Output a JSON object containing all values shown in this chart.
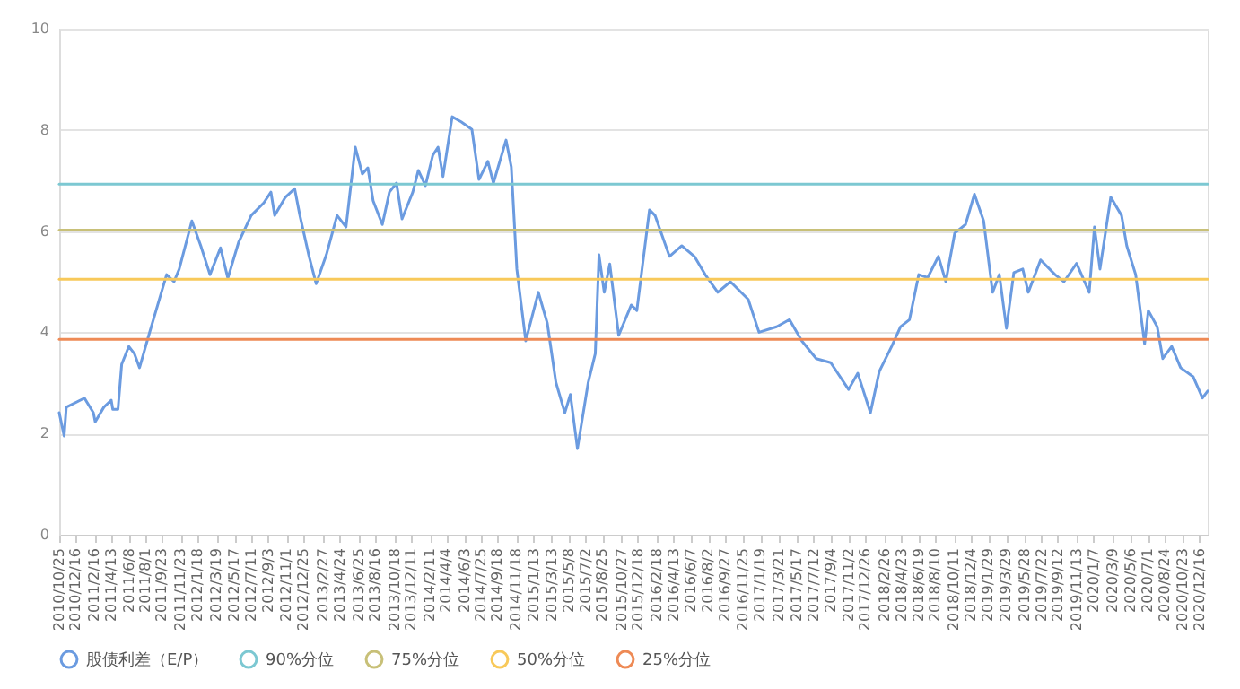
{
  "chart_data": {
    "type": "line",
    "xlim": [
      "2010-10-25",
      "2021-01-12"
    ],
    "xticks": [
      {
        "value": "2010-10-25",
        "label": "2010/10/25"
      },
      {
        "value": "2010-12-16",
        "label": "2010/12/16"
      },
      {
        "value": "2011-02-16",
        "label": "2011/2/16"
      },
      {
        "value": "2011-04-13",
        "label": "2011/4/13"
      },
      {
        "value": "2011-06-08",
        "label": "2011/6/8"
      },
      {
        "value": "2011-08-01",
        "label": "2011/8/1"
      },
      {
        "value": "2011-09-23",
        "label": "2011/9/23"
      },
      {
        "value": "2011-11-23",
        "label": "2011/11/23"
      },
      {
        "value": "2012-01-18",
        "label": "2012/1/18"
      },
      {
        "value": "2012-03-19",
        "label": "2012/3/19"
      },
      {
        "value": "2012-05-17",
        "label": "2012/5/17"
      },
      {
        "value": "2012-07-11",
        "label": "2012/7/11"
      },
      {
        "value": "2012-09-03",
        "label": "2012/9/3"
      },
      {
        "value": "2012-11-01",
        "label": "2012/11/1"
      },
      {
        "value": "2012-12-25",
        "label": "2012/12/25"
      },
      {
        "value": "2013-02-27",
        "label": "2013/2/27"
      },
      {
        "value": "2013-04-24",
        "label": "2013/4/24"
      },
      {
        "value": "2013-06-25",
        "label": "2013/6/25"
      },
      {
        "value": "2013-08-16",
        "label": "2013/8/16"
      },
      {
        "value": "2013-10-18",
        "label": "2013/10/18"
      },
      {
        "value": "2013-12-11",
        "label": "2013/12/11"
      },
      {
        "value": "2014-02-11",
        "label": "2014/2/11"
      },
      {
        "value": "2014-04-04",
        "label": "2014/4/4"
      },
      {
        "value": "2014-06-03",
        "label": "2014/6/3"
      },
      {
        "value": "2014-07-25",
        "label": "2014/7/25"
      },
      {
        "value": "2014-09-18",
        "label": "2014/9/18"
      },
      {
        "value": "2014-11-18",
        "label": "2014/11/18"
      },
      {
        "value": "2015-01-13",
        "label": "2015/1/13"
      },
      {
        "value": "2015-03-13",
        "label": "2015/3/13"
      },
      {
        "value": "2015-05-08",
        "label": "2015/5/8"
      },
      {
        "value": "2015-07-02",
        "label": "2015/7/2"
      },
      {
        "value": "2015-08-25",
        "label": "2015/8/25"
      },
      {
        "value": "2015-10-27",
        "label": "2015/10/27"
      },
      {
        "value": "2015-12-18",
        "label": "2015/12/18"
      },
      {
        "value": "2016-02-18",
        "label": "2016/2/18"
      },
      {
        "value": "2016-04-13",
        "label": "2016/4/13"
      },
      {
        "value": "2016-06-07",
        "label": "2016/6/7"
      },
      {
        "value": "2016-08-02",
        "label": "2016/8/2"
      },
      {
        "value": "2016-09-27",
        "label": "2016/9/27"
      },
      {
        "value": "2016-11-25",
        "label": "2016/11/25"
      },
      {
        "value": "2017-01-19",
        "label": "2017/1/19"
      },
      {
        "value": "2017-03-21",
        "label": "2017/3/21"
      },
      {
        "value": "2017-05-17",
        "label": "2017/5/17"
      },
      {
        "value": "2017-07-12",
        "label": "2017/7/12"
      },
      {
        "value": "2017-09-04",
        "label": "2017/9/4"
      },
      {
        "value": "2017-11-02",
        "label": "2017/11/2"
      },
      {
        "value": "2017-12-26",
        "label": "2017/12/26"
      },
      {
        "value": "2018-02-26",
        "label": "2018/2/26"
      },
      {
        "value": "2018-04-23",
        "label": "2018/4/23"
      },
      {
        "value": "2018-06-19",
        "label": "2018/6/19"
      },
      {
        "value": "2018-08-10",
        "label": "2018/8/10"
      },
      {
        "value": "2018-10-11",
        "label": "2018/10/11"
      },
      {
        "value": "2018-12-04",
        "label": "2018/12/4"
      },
      {
        "value": "2019-01-29",
        "label": "2019/1/29"
      },
      {
        "value": "2019-03-29",
        "label": "2019/3/29"
      },
      {
        "value": "2019-05-28",
        "label": "2019/5/28"
      },
      {
        "value": "2019-07-22",
        "label": "2019/7/22"
      },
      {
        "value": "2019-09-12",
        "label": "2019/9/12"
      },
      {
        "value": "2019-11-13",
        "label": "2019/11/13"
      },
      {
        "value": "2020-01-07",
        "label": "2020/1/7"
      },
      {
        "value": "2020-03-09",
        "label": "2020/3/9"
      },
      {
        "value": "2020-05-06",
        "label": "2020/5/6"
      },
      {
        "value": "2020-07-01",
        "label": "2020/7/1"
      },
      {
        "value": "2020-08-24",
        "label": "2020/8/24"
      },
      {
        "value": "2020-10-23",
        "label": "2020/10/23"
      },
      {
        "value": "2020-12-16",
        "label": "2020/12/16"
      }
    ],
    "ylim": [
      0,
      10
    ],
    "yticks": [
      0,
      2,
      4,
      6,
      8,
      10
    ],
    "grid": "y",
    "legend": "bottom",
    "x": [
      "2010-10-25",
      "2010-11-10",
      "2010-11-17",
      "2011-01-15",
      "2011-02-13",
      "2011-02-19",
      "2011-03-19",
      "2011-04-12",
      "2011-04-17",
      "2011-05-04",
      "2011-05-16",
      "2011-06-08",
      "2011-06-26",
      "2011-07-13",
      "2011-08-12",
      "2011-09-10",
      "2011-10-09",
      "2011-11-02",
      "2011-11-19",
      "2011-12-30",
      "2012-01-28",
      "2012-02-27",
      "2012-04-01",
      "2012-04-25",
      "2012-05-30",
      "2012-07-10",
      "2012-08-20",
      "2012-09-12",
      "2012-09-24",
      "2012-10-29",
      "2012-11-28",
      "2012-12-15",
      "2013-01-14",
      "2013-02-06",
      "2013-03-11",
      "2013-04-15",
      "2013-05-14",
      "2013-06-13",
      "2013-07-06",
      "2013-07-24",
      "2013-08-10",
      "2013-09-09",
      "2013-10-02",
      "2013-10-25",
      "2013-11-12",
      "2013-12-17",
      "2014-01-04",
      "2014-01-27",
      "2014-02-20",
      "2014-03-09",
      "2014-03-25",
      "2014-04-24",
      "2014-05-23",
      "2014-06-27",
      "2014-07-20",
      "2014-08-18",
      "2014-09-05",
      "2014-10-16",
      "2014-11-02",
      "2014-11-20",
      "2014-12-19",
      "2015-01-29",
      "2015-02-27",
      "2015-03-27",
      "2015-04-25",
      "2015-05-13",
      "2015-06-05",
      "2015-07-10",
      "2015-08-02",
      "2015-08-14",
      "2015-08-31",
      "2015-09-18",
      "2015-10-17",
      "2015-11-27",
      "2015-12-15",
      "2016-01-25",
      "2016-02-12",
      "2016-03-30",
      "2016-05-09",
      "2016-06-19",
      "2016-07-24",
      "2016-09-03",
      "2016-10-14",
      "2016-12-11",
      "2017-01-15",
      "2017-03-13",
      "2017-04-24",
      "2017-06-03",
      "2017-07-20",
      "2017-09-05",
      "2017-11-02",
      "2017-12-02",
      "2018-01-12",
      "2018-02-10",
      "2018-03-22",
      "2018-04-20",
      "2018-05-19",
      "2018-06-18",
      "2018-07-17",
      "2018-08-21",
      "2018-09-14",
      "2018-10-13",
      "2018-11-17",
      "2018-12-16",
      "2019-01-15",
      "2019-02-13",
      "2019-03-07",
      "2019-03-30",
      "2019-04-23",
      "2019-05-22",
      "2019-06-09",
      "2019-07-19",
      "2019-09-04",
      "2019-10-03",
      "2019-11-13",
      "2019-12-24",
      "2020-01-10",
      "2020-01-28",
      "2020-03-03",
      "2020-04-07",
      "2020-04-24",
      "2020-05-23",
      "2020-06-21",
      "2020-07-03",
      "2020-08-01",
      "2020-08-19",
      "2020-09-17",
      "2020-10-16",
      "2020-11-26",
      "2020-12-26",
      "2021-01-12"
    ],
    "series": [
      {
        "name": "股债利差（E/P）",
        "color": "#6b9be0",
        "values": [
          2.41,
          1.95,
          2.52,
          2.7,
          2.41,
          2.23,
          2.52,
          2.66,
          2.48,
          2.48,
          3.37,
          3.72,
          3.58,
          3.3,
          3.94,
          4.54,
          5.14,
          5.0,
          5.25,
          6.2,
          5.71,
          5.14,
          5.67,
          5.07,
          5.78,
          6.31,
          6.56,
          6.77,
          6.31,
          6.67,
          6.84,
          6.31,
          5.5,
          4.96,
          5.53,
          6.31,
          6.08,
          7.66,
          7.13,
          7.25,
          6.6,
          6.13,
          6.77,
          6.95,
          6.24,
          6.77,
          7.2,
          6.9,
          7.5,
          7.66,
          7.08,
          8.26,
          8.16,
          8.01,
          7.02,
          7.38,
          6.95,
          7.8,
          7.27,
          5.25,
          3.83,
          4.79,
          4.18,
          3.01,
          2.41,
          2.77,
          1.7,
          3.01,
          3.58,
          5.53,
          4.79,
          5.35,
          3.94,
          4.54,
          4.43,
          6.42,
          6.31,
          5.5,
          5.71,
          5.5,
          5.14,
          4.79,
          5.0,
          4.65,
          4.0,
          4.11,
          4.25,
          3.83,
          3.48,
          3.4,
          2.87,
          3.19,
          2.41,
          3.23,
          3.72,
          4.11,
          4.25,
          5.14,
          5.08,
          5.5,
          5.0,
          5.96,
          6.13,
          6.73,
          6.2,
          4.79,
          5.14,
          4.08,
          5.18,
          5.25,
          4.79,
          5.43,
          5.14,
          5.0,
          5.36,
          4.79,
          6.08,
          5.25,
          6.67,
          6.31,
          5.71,
          5.14,
          3.77,
          4.43,
          4.11,
          3.48,
          3.72,
          3.3,
          3.12,
          2.7,
          2.84
        ]
      },
      {
        "name": "90%分位",
        "color": "#7cc8d2",
        "x": [
          "2010-10-25",
          "2021-01-12"
        ],
        "values": [
          6.93,
          6.93
        ]
      },
      {
        "name": "75%分位",
        "color": "#c8c078",
        "x": [
          "2010-10-25",
          "2021-01-12"
        ],
        "values": [
          6.02,
          6.02
        ]
      },
      {
        "name": "50%分位",
        "color": "#f8c95a",
        "x": [
          "2010-10-25",
          "2021-01-12"
        ],
        "values": [
          5.05,
          5.05
        ]
      },
      {
        "name": "25%分位",
        "color": "#ee8a55",
        "x": [
          "2010-10-25",
          "2021-01-12"
        ],
        "values": [
          3.86,
          3.86
        ]
      }
    ]
  }
}
